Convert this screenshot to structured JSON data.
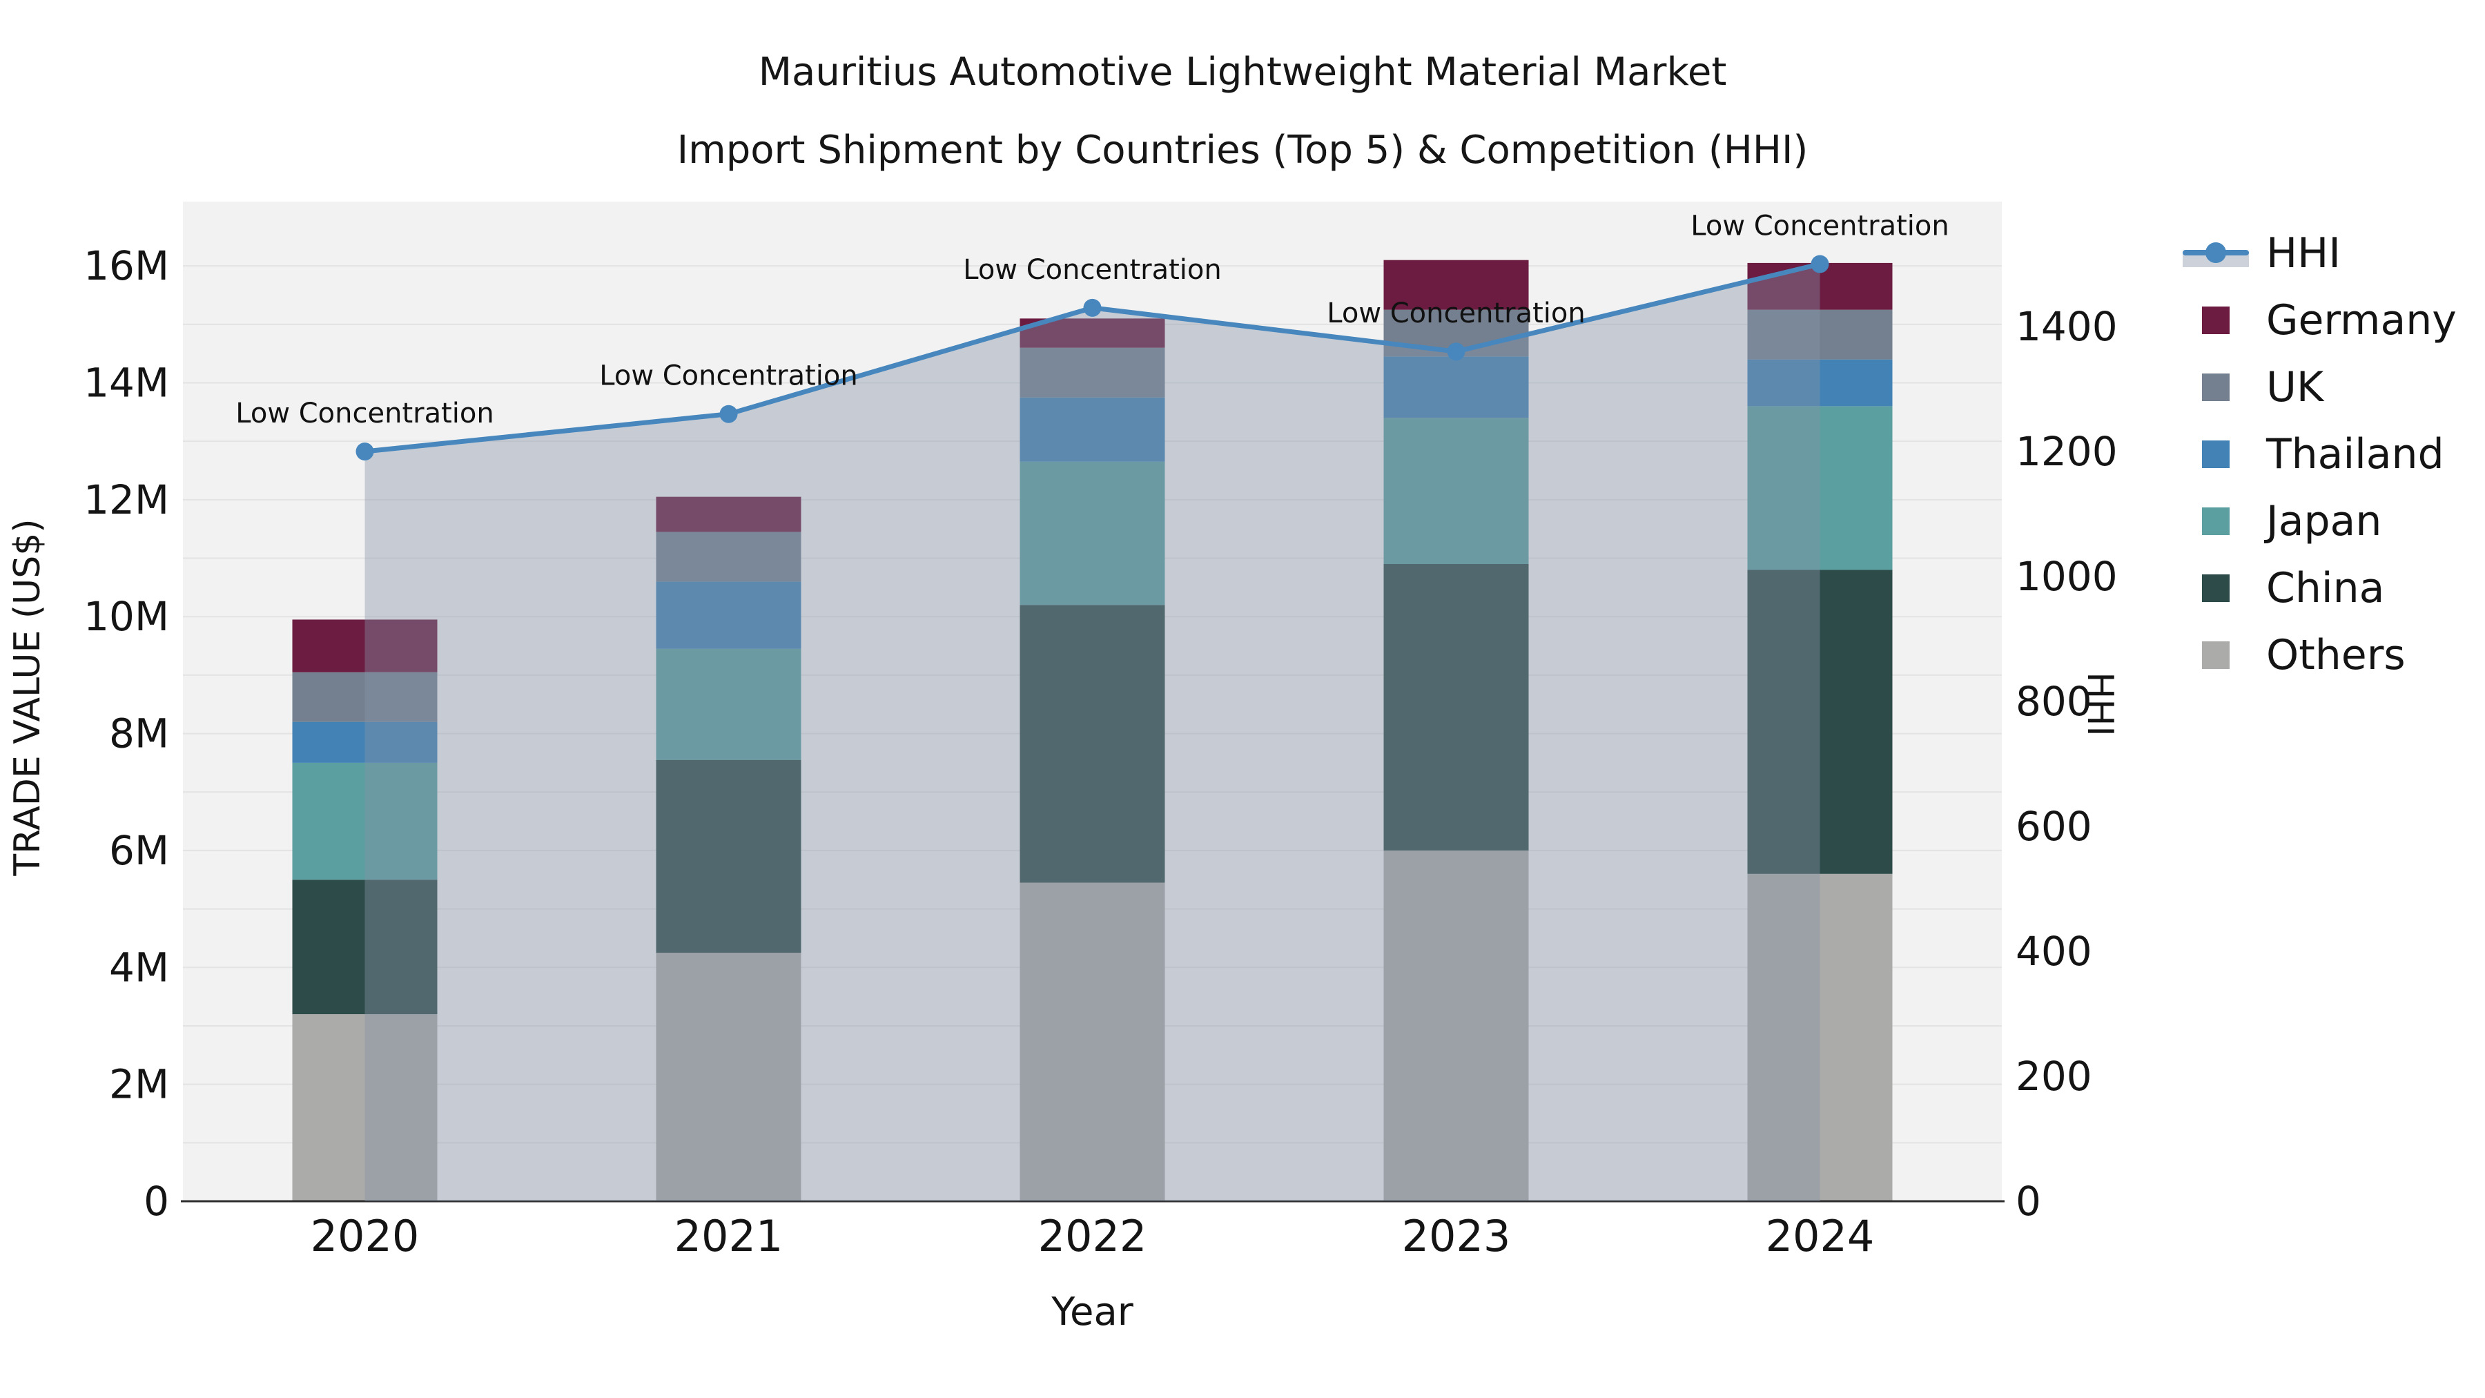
{
  "title": {
    "line1": "Mauritius Automotive Lightweight Material Market",
    "line2": "Import Shipment by Countries (Top 5) & Competition (HHI)"
  },
  "legend": {
    "position": "right",
    "items": [
      {
        "label": "HHI",
        "type": "line",
        "color": "#4787bd"
      },
      {
        "label": "Germany",
        "type": "square",
        "color": "#6b1c40"
      },
      {
        "label": "UK",
        "type": "square",
        "color": "#74808f"
      },
      {
        "label": "Thailand",
        "type": "square",
        "color": "#4382b4"
      },
      {
        "label": "Japan",
        "type": "square",
        "color": "#5b9fa0"
      },
      {
        "label": "China",
        "type": "square",
        "color": "#2d4c49"
      },
      {
        "label": "Others",
        "type": "square",
        "color": "#ababa9"
      }
    ]
  },
  "chart_data": {
    "type": "bar+line",
    "title": "Mauritius Automotive Lightweight Material Market",
    "subtitle": "Import Shipment by Countries (Top 5) & Competition (HHI)",
    "categories": [
      "2020",
      "2021",
      "2022",
      "2023",
      "2024"
    ],
    "xlabel": "Year",
    "ylabel_left": "TRADE VALUE (US$)",
    "ylabel_right": "HHI",
    "unit_left": "millions of US$",
    "ylim_left": [
      0,
      17.1
    ],
    "ylim_right": [
      0,
      1600
    ],
    "yticks_left": {
      "values": [
        0,
        2,
        4,
        6,
        8,
        10,
        12,
        14,
        16
      ],
      "labels": [
        "0",
        "2M",
        "4M",
        "6M",
        "8M",
        "10M",
        "12M",
        "14M",
        "16M"
      ]
    },
    "yticks_right": {
      "values": [
        0,
        200,
        400,
        600,
        800,
        1000,
        1200,
        1400
      ],
      "labels": [
        "0",
        "200",
        "400",
        "600",
        "800",
        "1000",
        "1200",
        "1400"
      ]
    },
    "grid": "horizontal gridlines every 1M, light gray, plot background #f2f2f2",
    "legend_position": "right",
    "stack_order_bottom_to_top": [
      "Others",
      "China",
      "Japan",
      "Thailand",
      "UK",
      "Germany"
    ],
    "series": [
      {
        "name": "Germany",
        "color": "#6b1c40",
        "values": [
          0.9,
          0.6,
          0.5,
          0.85,
          0.8
        ]
      },
      {
        "name": "UK",
        "color": "#74808f",
        "values": [
          0.85,
          0.85,
          0.85,
          0.8,
          0.85
        ]
      },
      {
        "name": "Thailand",
        "color": "#4382b4",
        "values": [
          0.7,
          1.15,
          1.1,
          1.05,
          0.8
        ]
      },
      {
        "name": "Japan",
        "color": "#5b9fa0",
        "values": [
          2.0,
          1.9,
          2.45,
          2.5,
          2.8
        ]
      },
      {
        "name": "China",
        "color": "#2d4c49",
        "values": [
          2.3,
          3.3,
          4.75,
          4.9,
          5.2
        ]
      },
      {
        "name": "Others",
        "color": "#ababa9",
        "values": [
          3.2,
          4.25,
          5.45,
          6.0,
          5.6
        ]
      }
    ],
    "bar_totals": [
      9.95,
      12.05,
      15.1,
      16.1,
      16.05
    ],
    "line": {
      "name": "HHI",
      "axis": "right",
      "color": "#4787bd",
      "area_color": "rgba(135,148,168,0.40)",
      "values": [
        1200,
        1260,
        1430,
        1360,
        1500
      ]
    },
    "annotations": [
      {
        "x": "2020",
        "text": "Low Concentration"
      },
      {
        "x": "2021",
        "text": "Low Concentration"
      },
      {
        "x": "2022",
        "text": "Low Concentration"
      },
      {
        "x": "2023",
        "text": "Low Concentration"
      },
      {
        "x": "2024",
        "text": "Low Concentration"
      }
    ]
  }
}
